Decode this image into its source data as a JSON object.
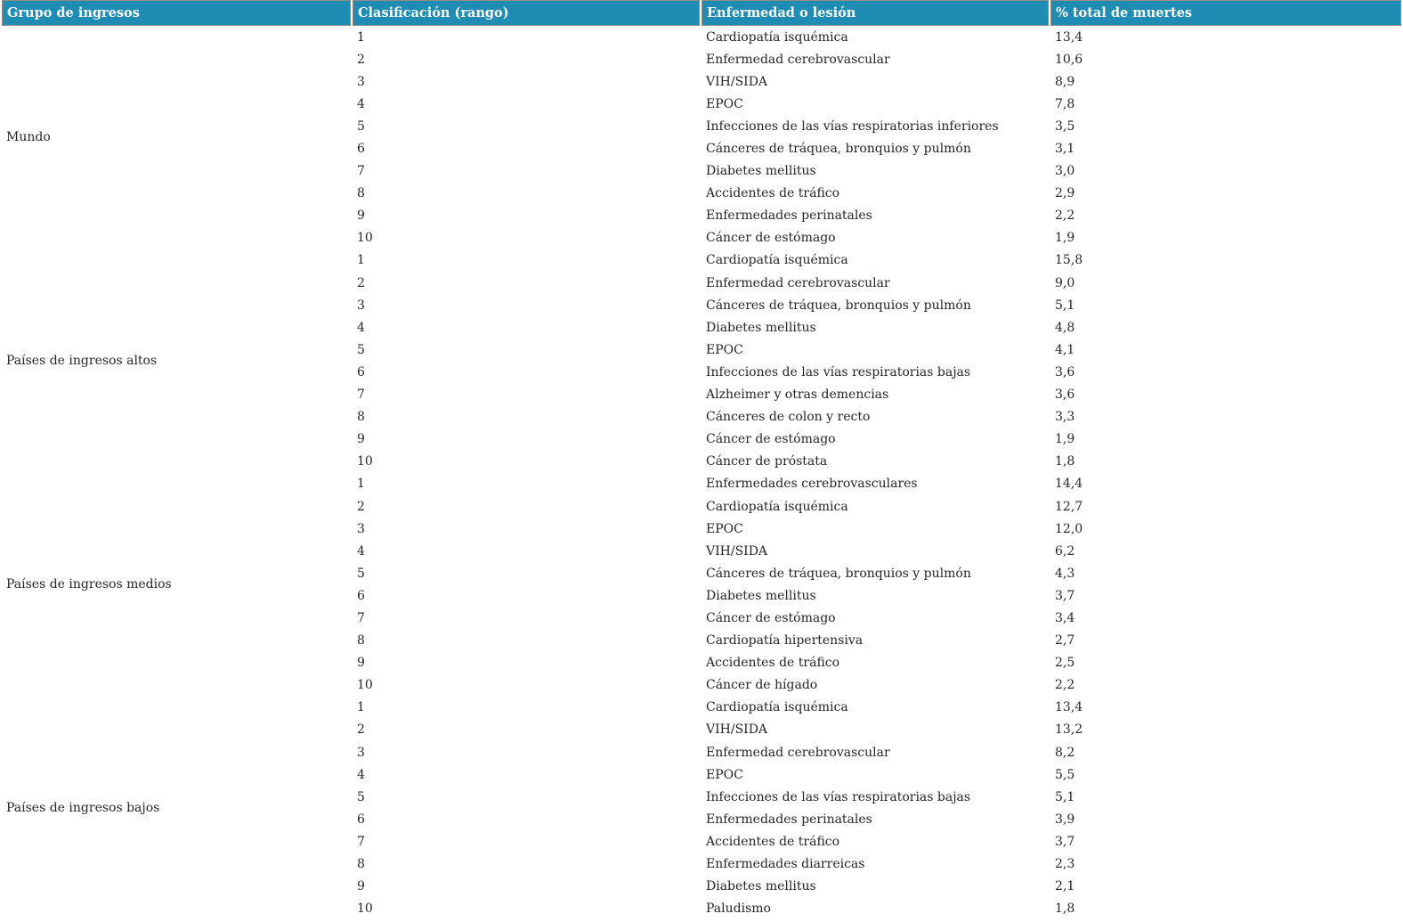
{
  "table": {
    "columns": [
      "Grupo de ingresos",
      "Clasificación (rango)",
      "Enfermedad o lesión",
      "% total de muertes"
    ],
    "groups": [
      {
        "name": "Mundo",
        "rows": [
          {
            "rank": "1",
            "disease": "Cardiopatía isquémica",
            "pct": "13,4"
          },
          {
            "rank": "2",
            "disease": "Enfermedad cerebrovascular",
            "pct": "10,6"
          },
          {
            "rank": "3",
            "disease": "VIH/SIDA",
            "pct": "8,9"
          },
          {
            "rank": "4",
            "disease": "EPOC",
            "pct": "7,8"
          },
          {
            "rank": "5",
            "disease": "Infecciones de las vías respiratorias inferiores",
            "pct": "3,5"
          },
          {
            "rank": "6",
            "disease": "Cánceres de tráquea, bronquios y pulmón",
            "pct": "3,1"
          },
          {
            "rank": "7",
            "disease": "Diabetes mellitus",
            "pct": "3,0"
          },
          {
            "rank": "8",
            "disease": "Accidentes de tráfico",
            "pct": "2,9"
          },
          {
            "rank": "9",
            "disease": "Enfermedades perinatales",
            "pct": "2,2"
          },
          {
            "rank": "10",
            "disease": "Cáncer de estómago",
            "pct": "1,9"
          }
        ]
      },
      {
        "name": "Países de ingresos altos",
        "rows": [
          {
            "rank": "1",
            "disease": "Cardiopatía isquémica",
            "pct": "15,8"
          },
          {
            "rank": "2",
            "disease": "Enfermedad cerebrovascular",
            "pct": "9,0"
          },
          {
            "rank": "3",
            "disease": "Cánceres de tráquea, bronquios y pulmón",
            "pct": "5,1"
          },
          {
            "rank": "4",
            "disease": "Diabetes mellitus",
            "pct": "4,8"
          },
          {
            "rank": "5",
            "disease": "EPOC",
            "pct": "4,1"
          },
          {
            "rank": "6",
            "disease": "Infecciones de las vías respiratorias bajas",
            "pct": "3,6"
          },
          {
            "rank": "7",
            "disease": "Alzheimer y otras demencias",
            "pct": "3,6"
          },
          {
            "rank": "8",
            "disease": "Cánceres de colon y recto",
            "pct": "3,3"
          },
          {
            "rank": "9",
            "disease": "Cáncer de estómago",
            "pct": "1,9"
          },
          {
            "rank": "10",
            "disease": "Cáncer de próstata",
            "pct": "1,8"
          }
        ]
      },
      {
        "name": "Países de ingresos medios",
        "rows": [
          {
            "rank": "1",
            "disease": "Enfermedades cerebrovasculares",
            "pct": "14,4"
          },
          {
            "rank": "2",
            "disease": "Cardiopatía isquémica",
            "pct": "12,7"
          },
          {
            "rank": "3",
            "disease": "EPOC",
            "pct": "12,0"
          },
          {
            "rank": "4",
            "disease": "VIH/SIDA",
            "pct": "6,2"
          },
          {
            "rank": "5",
            "disease": "Cánceres de tráquea, bronquios y pulmón",
            "pct": "4,3"
          },
          {
            "rank": "6",
            "disease": "Diabetes mellitus",
            "pct": "3,7"
          },
          {
            "rank": "7",
            "disease": "Cáncer de estómago",
            "pct": "3,4"
          },
          {
            "rank": "8",
            "disease": "Cardiopatía hipertensiva",
            "pct": "2,7"
          },
          {
            "rank": "9",
            "disease": "Accidentes de tráfico",
            "pct": "2,5"
          },
          {
            "rank": "10",
            "disease": "Cáncer de hígado",
            "pct": "2,2"
          }
        ]
      },
      {
        "name": "Países de ingresos bajos",
        "rows": [
          {
            "rank": "1",
            "disease": "Cardiopatía isquémica",
            "pct": "13,4"
          },
          {
            "rank": "2",
            "disease": "VIH/SIDA",
            "pct": "13,2"
          },
          {
            "rank": "3",
            "disease": "Enfermedad cerebrovascular",
            "pct": "8,2"
          },
          {
            "rank": "4",
            "disease": "EPOC",
            "pct": "5,5"
          },
          {
            "rank": "5",
            "disease": "Infecciones de las vías respiratorias bajas",
            "pct": "5,1"
          },
          {
            "rank": "6",
            "disease": "Enfermedades perinatales",
            "pct": "3,9"
          },
          {
            "rank": "7",
            "disease": "Accidentes de tráfico",
            "pct": "3,7"
          },
          {
            "rank": "8",
            "disease": "Enfermedades diarreicas",
            "pct": "2,3"
          },
          {
            "rank": "9",
            "disease": "Diabetes mellitus",
            "pct": "2,1"
          },
          {
            "rank": "10",
            "disease": "Paludismo",
            "pct": "1,8"
          }
        ]
      }
    ]
  },
  "colors": {
    "header_background": "#1f8cb4",
    "header_text": "#ffffff",
    "header_border": "#938b84",
    "body_text": "#262626"
  },
  "chart_data": {
    "type": "table",
    "columns": [
      "Grupo de ingresos",
      "Clasificación (rango)",
      "Enfermedad o lesión",
      "% total de muertes"
    ],
    "rows": [
      [
        "Mundo",
        1,
        "Cardiopatía isquémica",
        13.4
      ],
      [
        "Mundo",
        2,
        "Enfermedad cerebrovascular",
        10.6
      ],
      [
        "Mundo",
        3,
        "VIH/SIDA",
        8.9
      ],
      [
        "Mundo",
        4,
        "EPOC",
        7.8
      ],
      [
        "Mundo",
        5,
        "Infecciones de las vías respiratorias inferiores",
        3.5
      ],
      [
        "Mundo",
        6,
        "Cánceres de tráquea, bronquios y pulmón",
        3.1
      ],
      [
        "Mundo",
        7,
        "Diabetes mellitus",
        3.0
      ],
      [
        "Mundo",
        8,
        "Accidentes de tráfico",
        2.9
      ],
      [
        "Mundo",
        9,
        "Enfermedades perinatales",
        2.2
      ],
      [
        "Mundo",
        10,
        "Cáncer de estómago",
        1.9
      ],
      [
        "Países de ingresos altos",
        1,
        "Cardiopatía isquémica",
        15.8
      ],
      [
        "Países de ingresos altos",
        2,
        "Enfermedad cerebrovascular",
        9.0
      ],
      [
        "Países de ingresos altos",
        3,
        "Cánceres de tráquea, bronquios y pulmón",
        5.1
      ],
      [
        "Países de ingresos altos",
        4,
        "Diabetes mellitus",
        4.8
      ],
      [
        "Países de ingresos altos",
        5,
        "EPOC",
        4.1
      ],
      [
        "Países de ingresos altos",
        6,
        "Infecciones de las vías respiratorias bajas",
        3.6
      ],
      [
        "Países de ingresos altos",
        7,
        "Alzheimer y otras demencias",
        3.6
      ],
      [
        "Países de ingresos altos",
        8,
        "Cánceres de colon y recto",
        3.3
      ],
      [
        "Países de ingresos altos",
        9,
        "Cáncer de estómago",
        1.9
      ],
      [
        "Países de ingresos altos",
        10,
        "Cáncer de próstata",
        1.8
      ],
      [
        "Países de ingresos medios",
        1,
        "Enfermedades cerebrovasculares",
        14.4
      ],
      [
        "Países de ingresos medios",
        2,
        "Cardiopatía isquémica",
        12.7
      ],
      [
        "Países de ingresos medios",
        3,
        "EPOC",
        12.0
      ],
      [
        "Países de ingresos medios",
        4,
        "VIH/SIDA",
        6.2
      ],
      [
        "Países de ingresos medios",
        5,
        "Cánceres de tráquea, bronquios y pulmón",
        4.3
      ],
      [
        "Países de ingresos medios",
        6,
        "Diabetes mellitus",
        3.7
      ],
      [
        "Países de ingresos medios",
        7,
        "Cáncer de estómago",
        3.4
      ],
      [
        "Países de ingresos medios",
        8,
        "Cardiopatía hipertensiva",
        2.7
      ],
      [
        "Países de ingresos medios",
        9,
        "Accidentes de tráfico",
        2.5
      ],
      [
        "Países de ingresos medios",
        10,
        "Cáncer de hígado",
        2.2
      ],
      [
        "Países de ingresos bajos",
        1,
        "Cardiopatía isquémica",
        13.4
      ],
      [
        "Países de ingresos bajos",
        2,
        "VIH/SIDA",
        13.2
      ],
      [
        "Países de ingresos bajos",
        3,
        "Enfermedad cerebrovascular",
        8.2
      ],
      [
        "Países de ingresos bajos",
        4,
        "EPOC",
        5.5
      ],
      [
        "Países de ingresos bajos",
        5,
        "Infecciones de las vías respiratorias bajas",
        5.1
      ],
      [
        "Países de ingresos bajos",
        6,
        "Enfermedades perinatales",
        3.9
      ],
      [
        "Países de ingresos bajos",
        7,
        "Accidentes de tráfico",
        3.7
      ],
      [
        "Países de ingresos bajos",
        8,
        "Enfermedades diarreicas",
        2.3
      ],
      [
        "Países de ingresos bajos",
        9,
        "Diabetes mellitus",
        2.1
      ],
      [
        "Países de ingresos bajos",
        10,
        "Paludismo",
        1.8
      ]
    ]
  }
}
